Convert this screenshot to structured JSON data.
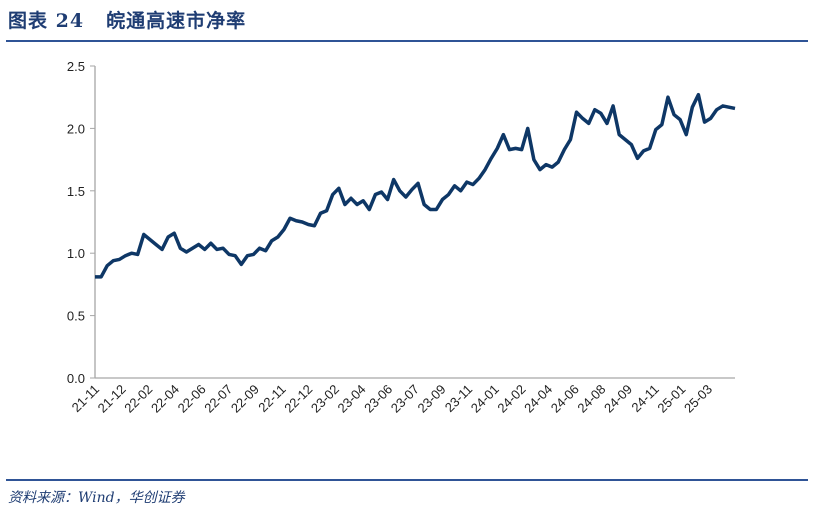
{
  "header": {
    "figure_label": "图表 24",
    "title": "皖通高速市净率"
  },
  "footer": {
    "source": "资料来源：Wind，华创证券"
  },
  "colors": {
    "line": "#0e3766",
    "rule": "#2f5496",
    "axis": "#a6a6a6"
  },
  "chart_data": {
    "type": "line",
    "title": "",
    "xlabel": "",
    "ylabel": "",
    "ylim": [
      0,
      2.5
    ],
    "y_ticks": [
      "0.0",
      "0.5",
      "1.0",
      "1.5",
      "2.0",
      "2.5"
    ],
    "x_tick_labels": [
      "21-11",
      "21-12",
      "22-02",
      "22-04",
      "22-06",
      "22-07",
      "22-09",
      "22-11",
      "22-12",
      "23-02",
      "23-04",
      "23-06",
      "23-07",
      "23-09",
      "23-11",
      "24-01",
      "24-02",
      "24-04",
      "24-06",
      "24-08",
      "24-09",
      "24-11",
      "25-01",
      "25-03"
    ],
    "grid": false,
    "series": [
      {
        "values": [
          0.81,
          0.81,
          0.9,
          0.94,
          0.95,
          0.98,
          1.0,
          0.99,
          1.15,
          1.11,
          1.07,
          1.03,
          1.13,
          1.16,
          1.04,
          1.01,
          1.04,
          1.07,
          1.03,
          1.08,
          1.03,
          1.04,
          0.99,
          0.98,
          0.91,
          0.98,
          0.99,
          1.04,
          1.02,
          1.1,
          1.13,
          1.19,
          1.28,
          1.26,
          1.25,
          1.23,
          1.22,
          1.32,
          1.34,
          1.47,
          1.52,
          1.39,
          1.44,
          1.39,
          1.42,
          1.35,
          1.47,
          1.49,
          1.43,
          1.59,
          1.5,
          1.45,
          1.51,
          1.56,
          1.39,
          1.35,
          1.35,
          1.43,
          1.47,
          1.54,
          1.5,
          1.57,
          1.55,
          1.6,
          1.67,
          1.76,
          1.84,
          1.95,
          1.83,
          1.84,
          1.83,
          2.0,
          1.75,
          1.67,
          1.71,
          1.69,
          1.73,
          1.83,
          1.91,
          2.13,
          2.08,
          2.04,
          2.15,
          2.12,
          2.04,
          2.18,
          1.95,
          1.91,
          1.87,
          1.76,
          1.82,
          1.84,
          1.99,
          2.03,
          2.25,
          2.11,
          2.07,
          1.95,
          2.17,
          2.27,
          2.05,
          2.08,
          2.15,
          2.18,
          2.17,
          2.16
        ]
      }
    ]
  }
}
